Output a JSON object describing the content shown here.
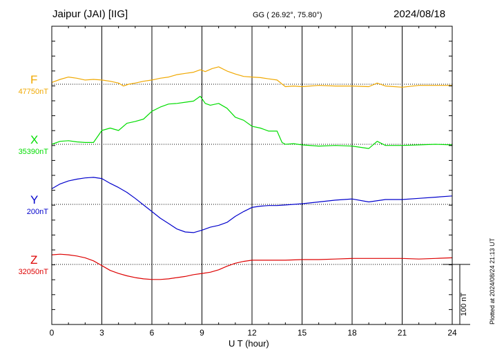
{
  "header": {
    "station": "Jaipur (JAI)  [IIG]",
    "coords": "GG ( 26.92°,  75.80°)",
    "date": "2024/08/18"
  },
  "footer_note": "Plotted at 2024/08/24 21:13 UT",
  "scale_bar_label": "100 nT",
  "chart_data": {
    "type": "line",
    "title": "Jaipur (JAI)  [IIG]",
    "xlabel": "U T (hour)",
    "ylabel": "",
    "xlim": [
      0,
      24
    ],
    "x_ticks": [
      "0",
      "3",
      "6",
      "9",
      "12",
      "15",
      "18",
      "21",
      "24"
    ],
    "grid": true,
    "scale_nT": 100,
    "series": [
      {
        "name": "F",
        "baseline_label": "47750nT",
        "baseline": 47750,
        "color": "#f0a800",
        "x": [
          0,
          0.5,
          1,
          1.5,
          2,
          2.5,
          3,
          3.5,
          4,
          4.3,
          4.6,
          5,
          5.5,
          6,
          6.5,
          7,
          7.5,
          8,
          8.5,
          8.9,
          9.2,
          9.6,
          10,
          10.5,
          11,
          11.5,
          12,
          12.5,
          13,
          13.5,
          14,
          14.5,
          15,
          16,
          17,
          18,
          19,
          19.5,
          20,
          21,
          22,
          23,
          24
        ],
        "values": [
          47753,
          47758,
          47762,
          47760,
          47757,
          47758,
          47757,
          47755,
          47752,
          47747,
          47750,
          47752,
          47755,
          47757,
          47760,
          47762,
          47766,
          47768,
          47770,
          47774,
          47771,
          47776,
          47779,
          47772,
          47767,
          47763,
          47762,
          47761,
          47759,
          47757,
          47746,
          47747,
          47746,
          47748,
          47747,
          47747,
          47746,
          47752,
          47747,
          47745,
          47748,
          47748,
          47748
        ]
      },
      {
        "name": "X",
        "baseline_label": "35390nT",
        "baseline": 35390,
        "color": "#00dd00",
        "x": [
          0,
          0.5,
          1,
          1.5,
          2,
          2.5,
          3,
          3.5,
          4,
          4.5,
          5,
          5.5,
          6,
          6.5,
          7,
          7.5,
          8,
          8.5,
          8.9,
          9.2,
          9.5,
          10,
          10.5,
          11,
          11.5,
          12,
          12.5,
          13,
          13.5,
          13.8,
          14,
          14.5,
          15,
          16,
          17,
          18,
          19,
          19.5,
          20,
          21,
          22,
          23,
          24
        ],
        "values": [
          35390,
          35395,
          35396,
          35394,
          35393,
          35393,
          35413,
          35417,
          35413,
          35425,
          35428,
          35432,
          35445,
          35452,
          35457,
          35458,
          35460,
          35462,
          35470,
          35458,
          35455,
          35458,
          35450,
          35435,
          35430,
          35420,
          35417,
          35412,
          35412,
          35393,
          35390,
          35391,
          35389,
          35387,
          35388,
          35387,
          35383,
          35395,
          35388,
          35388,
          35389,
          35390,
          35389
        ]
      },
      {
        "name": "Y",
        "baseline_label": "200nT",
        "baseline": 200,
        "color": "#0000cc",
        "x": [
          0,
          0.5,
          1,
          1.5,
          2,
          2.5,
          3,
          3.5,
          4,
          4.5,
          5,
          5.5,
          6,
          6.5,
          7,
          7.5,
          8,
          8.5,
          9,
          9.5,
          10,
          10.5,
          11,
          11.5,
          12,
          12.5,
          13,
          13.5,
          14,
          14.5,
          15,
          16,
          17,
          18,
          19,
          20,
          21,
          22,
          23,
          24
        ],
        "values": [
          226,
          234,
          239,
          242,
          244,
          245,
          243,
          235,
          228,
          220,
          210,
          199,
          188,
          177,
          168,
          159,
          154,
          153,
          157,
          162,
          165,
          170,
          180,
          188,
          195,
          197,
          198,
          198,
          199,
          200,
          201,
          204,
          207,
          209,
          204,
          208,
          208,
          210,
          212,
          214
        ]
      },
      {
        "name": "Z",
        "baseline_label": "32050nT",
        "baseline": 32050,
        "color": "#dd0000",
        "x": [
          0,
          0.5,
          1,
          1.5,
          2,
          2.5,
          3,
          3.5,
          4,
          4.5,
          5,
          5.5,
          6,
          6.5,
          7,
          7.5,
          8,
          8.5,
          9,
          9.5,
          10,
          10.5,
          11,
          11.5,
          12,
          12.5,
          13,
          14,
          15,
          16,
          17,
          18,
          19,
          20,
          21,
          22,
          23,
          24
        ],
        "values": [
          32066,
          32067,
          32066,
          32064,
          32061,
          32056,
          32048,
          32040,
          32035,
          32031,
          32028,
          32026,
          32025,
          32025,
          32026,
          32028,
          32030,
          32033,
          32035,
          32037,
          32041,
          32047,
          32052,
          32055,
          32057,
          32057,
          32057,
          32057,
          32058,
          32058,
          32059,
          32060,
          32060,
          32060,
          32060,
          32059,
          32060,
          32061
        ]
      }
    ]
  }
}
